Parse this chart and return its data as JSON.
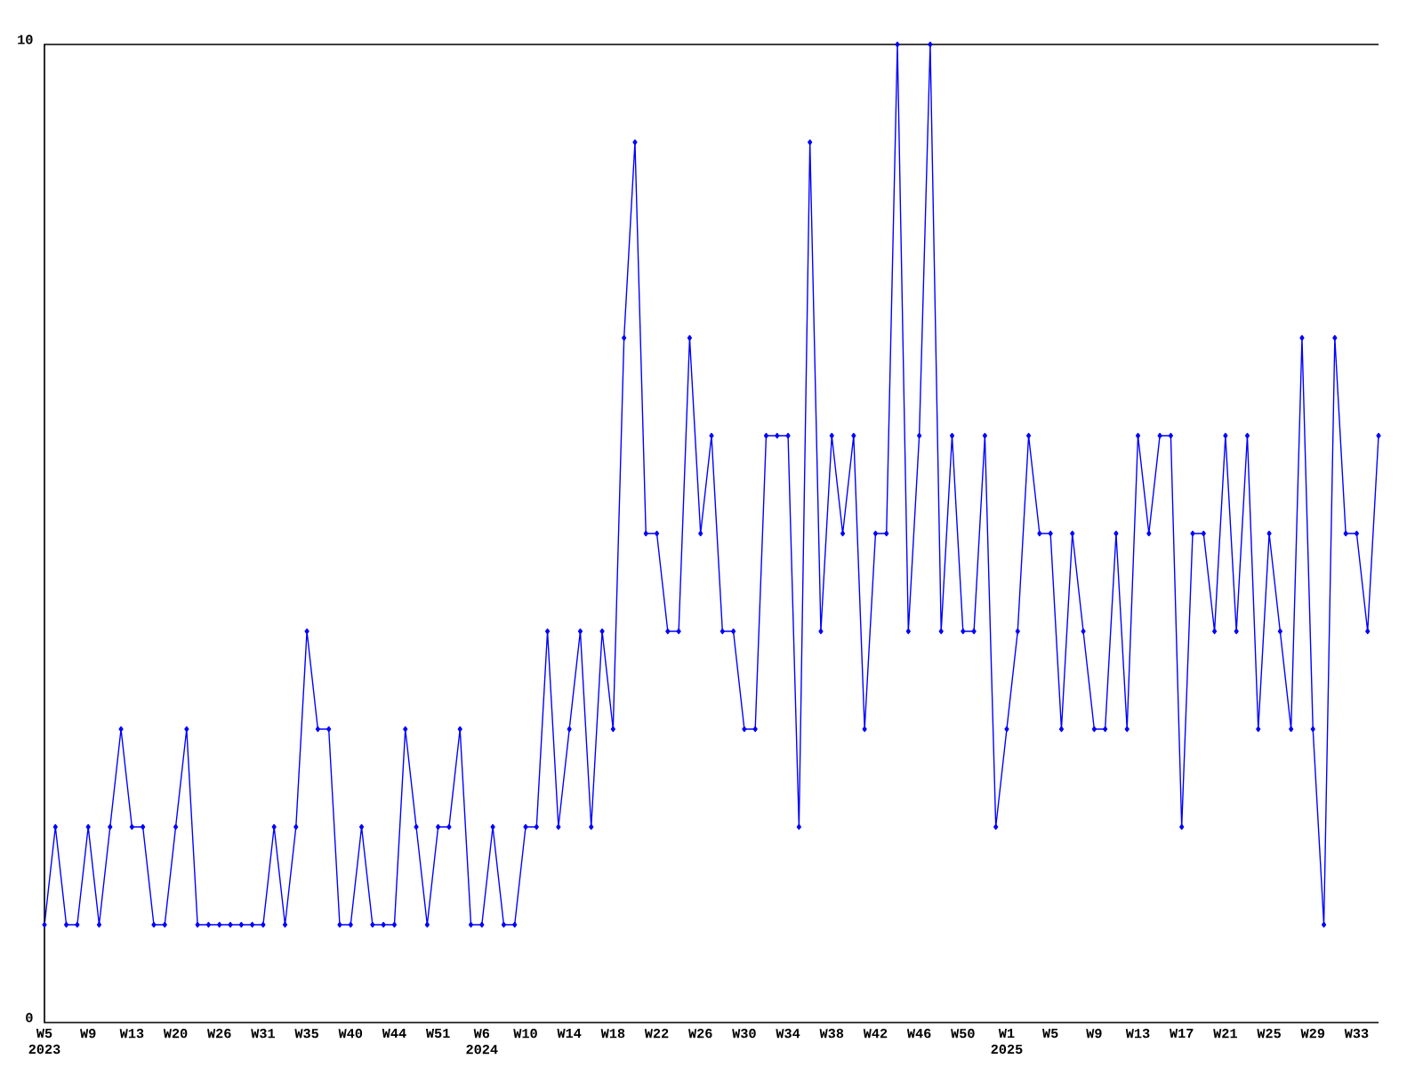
{
  "chart_data": {
    "type": "line",
    "categories": [
      "W5 2023",
      null,
      null,
      null,
      "W9",
      null,
      null,
      null,
      "W13",
      null,
      null,
      null,
      "W20",
      null,
      null,
      null,
      "W26",
      null,
      null,
      null,
      "W31",
      null,
      null,
      null,
      "W35",
      null,
      null,
      null,
      "W40",
      null,
      null,
      null,
      "W44",
      null,
      null,
      null,
      "W51",
      null,
      null,
      null,
      "W6 2024",
      null,
      null,
      null,
      "W10",
      null,
      null,
      null,
      "W14",
      null,
      null,
      null,
      "W18",
      null,
      null,
      null,
      "W22",
      null,
      null,
      null,
      "W26",
      null,
      null,
      null,
      "W30",
      null,
      null,
      null,
      "W34",
      null,
      null,
      null,
      "W38",
      null,
      null,
      null,
      "W42",
      null,
      null,
      null,
      "W46",
      null,
      null,
      null,
      "W50",
      null,
      null,
      null,
      "W1 2025",
      null,
      null,
      null,
      "W5",
      null,
      null,
      null,
      "W9",
      null,
      null,
      null,
      "W13",
      null,
      null,
      null,
      "W17",
      null,
      null,
      null,
      "W21",
      null,
      null,
      null,
      "W25",
      null,
      null,
      null,
      "W29",
      null,
      null,
      null,
      "W33",
      null,
      null
    ],
    "values": [
      1,
      2,
      1,
      1,
      2,
      1,
      2,
      3,
      2,
      2,
      1,
      1,
      2,
      3,
      1,
      1,
      1,
      1,
      1,
      1,
      1,
      2,
      1,
      2,
      4,
      3,
      3,
      1,
      1,
      2,
      1,
      1,
      1,
      3,
      2,
      1,
      2,
      2,
      3,
      1,
      1,
      2,
      1,
      1,
      2,
      2,
      4,
      2,
      3,
      4,
      2,
      4,
      3,
      7,
      9,
      5,
      5,
      4,
      4,
      7,
      5,
      6,
      4,
      4,
      3,
      3,
      6,
      6,
      6,
      2,
      9,
      4,
      6,
      5,
      6,
      3,
      5,
      5,
      10,
      4,
      6,
      10,
      4,
      6,
      4,
      4,
      6,
      2,
      3,
      4,
      6,
      5,
      5,
      3,
      5,
      4,
      3,
      3,
      5,
      3,
      6,
      5,
      6,
      6,
      2,
      5,
      5,
      4,
      6,
      4,
      6,
      3,
      5,
      4,
      3,
      7,
      3,
      1,
      7,
      5,
      5,
      4,
      6
    ],
    "color": "#0000ff",
    "ylim": [
      0,
      10
    ],
    "yticks": [
      0,
      10
    ],
    "marker": "diamond",
    "line_style": "solid"
  }
}
